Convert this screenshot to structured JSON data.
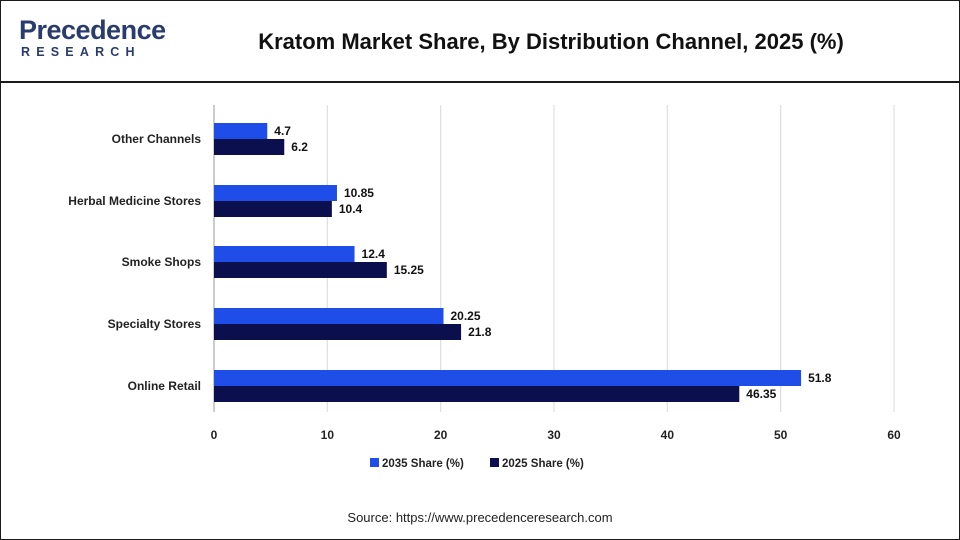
{
  "brand": {
    "logo_top": "Precedence",
    "logo_bottom": "RESEARCH"
  },
  "title": "Kratom Market Share, By Distribution Channel, 2025 (%)",
  "source": "Source: https://www.precedenceresearch.com",
  "chart_data": {
    "type": "bar",
    "orientation": "horizontal",
    "categories": [
      "Other Channels",
      "Herbal Medicine Stores",
      "Smoke Shops",
      "Specialty Stores",
      "Online Retail"
    ],
    "series": [
      {
        "name": "2035 Share (%)",
        "color": "#1f4de8",
        "values": [
          4.7,
          10.85,
          12.4,
          20.25,
          51.8
        ],
        "labels": [
          "4.7",
          "10.85",
          "12.4",
          "20.25",
          "51.8"
        ]
      },
      {
        "name": "2025 Share (%)",
        "color": "#0b0f4d",
        "values": [
          6.2,
          10.4,
          15.25,
          21.8,
          46.35
        ],
        "labels": [
          "6.2",
          "10.4",
          "15.25",
          "21.8",
          "46.35"
        ]
      }
    ],
    "xlim": [
      0,
      60
    ],
    "xticks": [
      0,
      10,
      20,
      30,
      40,
      50,
      60
    ],
    "grid": true,
    "legend": "bottom-center",
    "xlabel": "",
    "ylabel": ""
  }
}
